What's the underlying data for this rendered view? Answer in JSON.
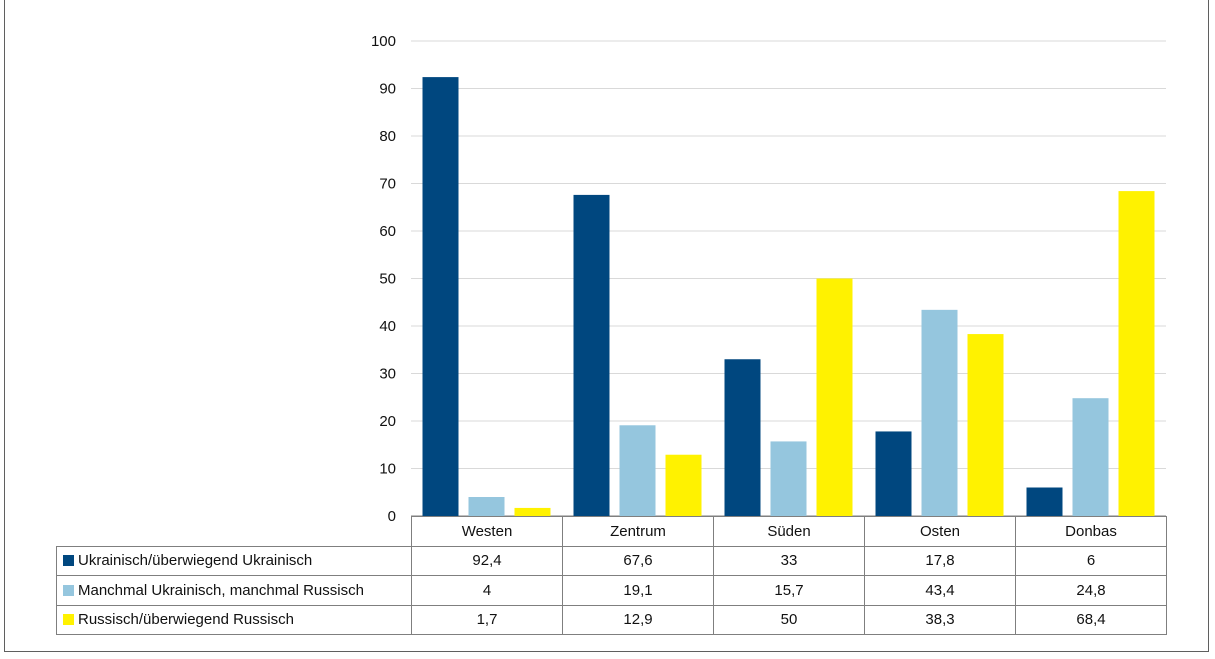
{
  "chart_data": {
    "type": "bar",
    "title": "",
    "xlabel": "",
    "ylabel": "",
    "ylim": [
      0,
      100
    ],
    "yticks": [
      0,
      10,
      20,
      30,
      40,
      50,
      60,
      70,
      80,
      90,
      100
    ],
    "grid": true,
    "legend": "data-table-rows",
    "categories": [
      "Westen",
      "Zentrum",
      "Süden",
      "Osten",
      "Donbas"
    ],
    "series": [
      {
        "name": "Ukrainisch/überwiegend Ukrainisch",
        "color": "#00477f",
        "values": [
          92.4,
          67.6,
          33,
          17.8,
          6
        ],
        "labels": [
          "92,4",
          "67,6",
          "33",
          "17,8",
          "6"
        ]
      },
      {
        "name": "Manchmal Ukrainisch, manchmal Russisch",
        "color": "#95c6de",
        "values": [
          4,
          19.1,
          15.7,
          43.4,
          24.8
        ],
        "labels": [
          "4",
          "19,1",
          "15,7",
          "43,4",
          "24,8"
        ]
      },
      {
        "name": "Russisch/überwiegend Russisch",
        "color": "#fff200",
        "values": [
          1.7,
          12.9,
          50,
          38.3,
          68.4
        ],
        "labels": [
          "1,7",
          "12,9",
          "50",
          "38,3",
          "68,4"
        ]
      }
    ]
  }
}
